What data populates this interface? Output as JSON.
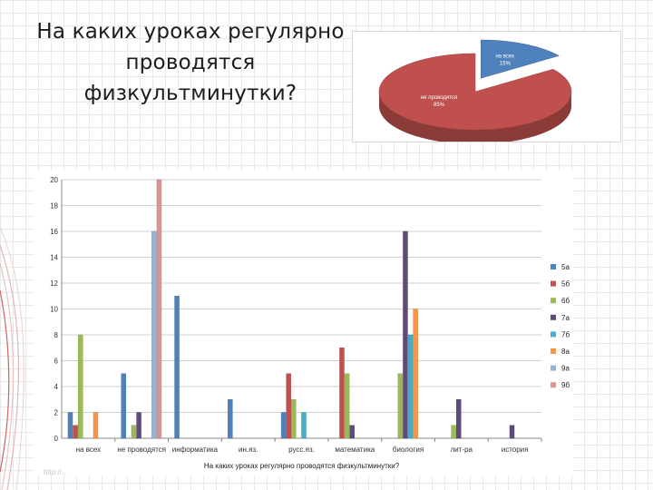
{
  "slide": {
    "title_lines": [
      "На каких уроках регулярно",
      "проводятся",
      "физкультминутки?"
    ],
    "watermark": "http://..."
  },
  "colors": {
    "pie_blue": "#4f81bd",
    "pie_red": "#c0504d",
    "grid": "#d0d0d0",
    "axis": "#888888"
  },
  "chart_data": [
    {
      "type": "pie",
      "slices": [
        {
          "label": "на всех",
          "value": 15,
          "value_label": "15%",
          "color": "#4f81bd"
        },
        {
          "label": "не проводятся",
          "value": 85,
          "value_label": "85%",
          "color": "#c0504d"
        }
      ]
    },
    {
      "type": "bar",
      "xlabel": "На каких уроках регулярно проводятся физкультминутки?",
      "ylabel": "",
      "ylim": [
        0,
        20
      ],
      "yticks": [
        0,
        2,
        4,
        6,
        8,
        10,
        12,
        14,
        16,
        18,
        20
      ],
      "legend_position": "right",
      "categories": [
        "на всех",
        "не проводятся",
        "информатика",
        "ин.яз.",
        "русс.яз.",
        "математика",
        "биология",
        "лит-ра",
        "история"
      ],
      "series": [
        {
          "name": "5а",
          "color": "#4f81bd",
          "values": [
            2,
            5,
            11,
            3,
            2,
            0,
            0,
            0,
            0
          ]
        },
        {
          "name": "5б",
          "color": "#c0504d",
          "values": [
            1,
            0,
            0,
            0,
            5,
            7,
            0,
            0,
            0
          ]
        },
        {
          "name": "6б",
          "color": "#9bbb59",
          "values": [
            8,
            1,
            0,
            0,
            3,
            5,
            5,
            1,
            0
          ]
        },
        {
          "name": "7а",
          "color": "#604a7b",
          "values": [
            0,
            2,
            0,
            0,
            0,
            1,
            16,
            3,
            1
          ]
        },
        {
          "name": "7б",
          "color": "#4bacc6",
          "values": [
            0,
            0,
            0,
            0,
            2,
            0,
            8,
            0,
            0
          ]
        },
        {
          "name": "8а",
          "color": "#f79646",
          "values": [
            2,
            0,
            0,
            0,
            0,
            0,
            10,
            0,
            0
          ]
        },
        {
          "name": "9а",
          "color": "#95b3d7",
          "values": [
            0,
            16,
            0,
            0,
            0,
            0,
            0,
            0,
            0
          ]
        },
        {
          "name": "9б",
          "color": "#d99694",
          "values": [
            0,
            20,
            0,
            0,
            0,
            0,
            0,
            0,
            0
          ]
        }
      ]
    }
  ]
}
